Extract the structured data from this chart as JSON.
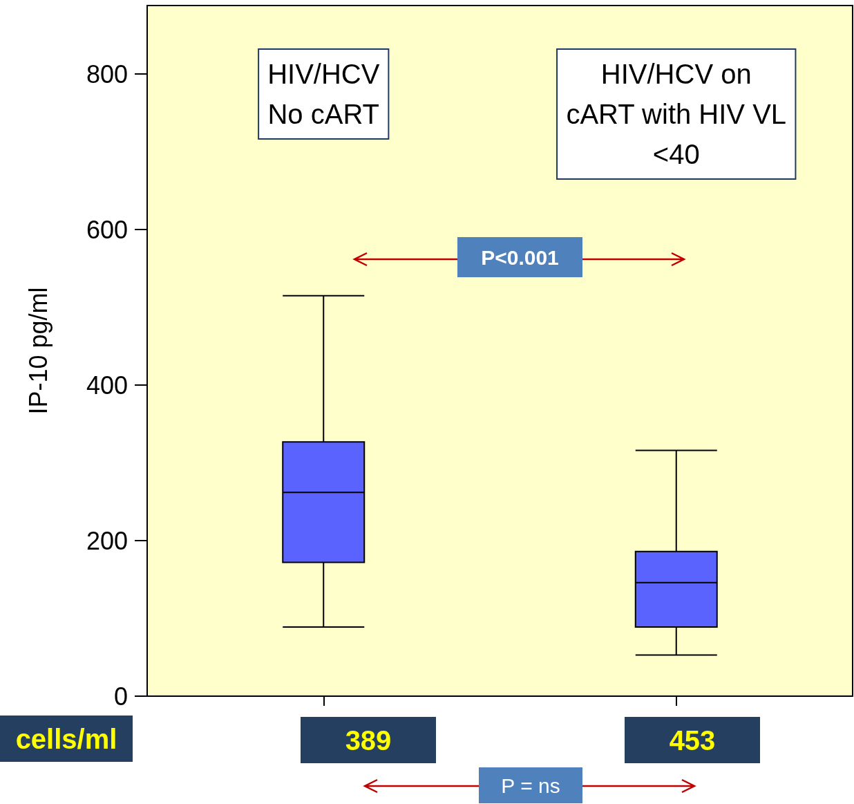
{
  "chart_data": {
    "type": "box",
    "ylabel": "IP-10 pg/ml",
    "categories": [
      "HIV/HCV\nNo cART",
      "HIV/HCV on\ncART with HIV VL\n<40"
    ],
    "boxes": [
      {
        "low": 89,
        "q1": 172,
        "median": 262,
        "q3": 327,
        "high": 515
      },
      {
        "low": 53,
        "q1": 89,
        "median": 146,
        "q3": 186,
        "high": 316
      }
    ],
    "color": "#5b63ff",
    "ylim": [
      0,
      888
    ],
    "yticks": [
      0,
      200,
      400,
      600,
      800
    ],
    "grid": false,
    "annotations": [
      "P<0.001",
      "cells/ml",
      "389",
      "453",
      "P = ns"
    ]
  }
}
